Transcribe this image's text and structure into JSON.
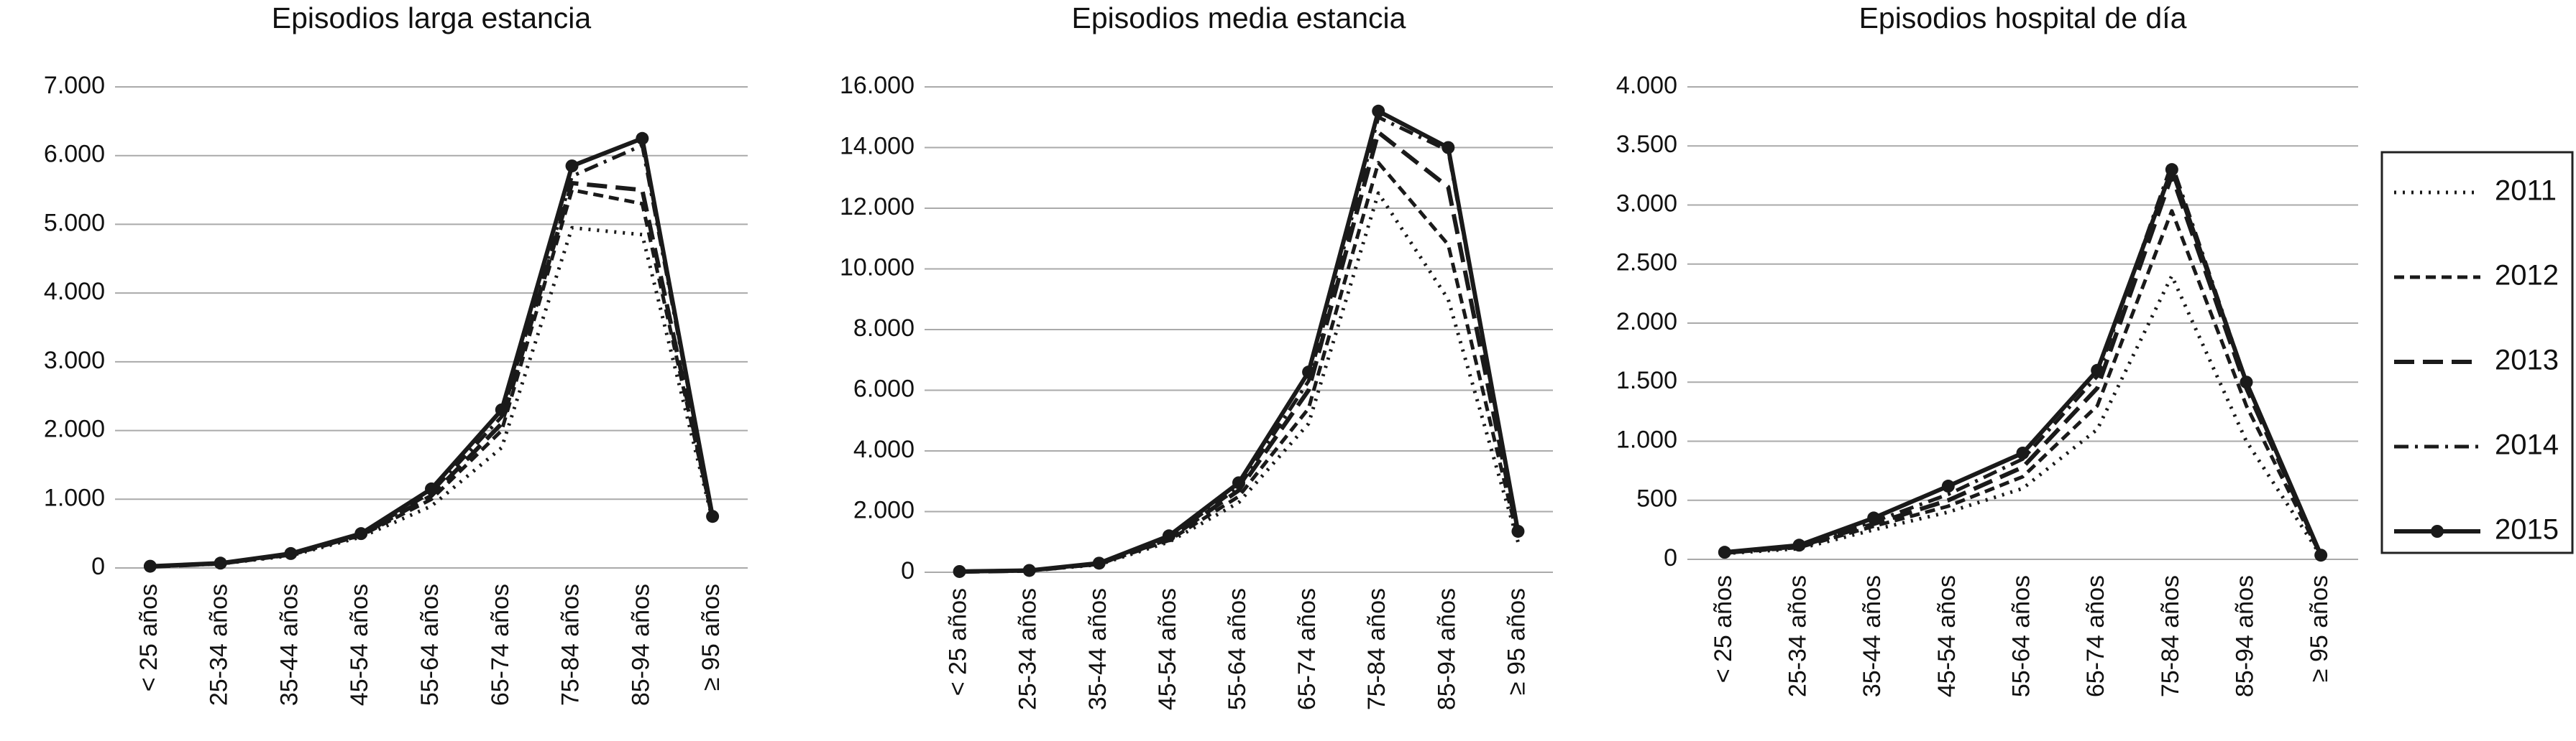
{
  "legend": [
    {
      "name": "2011",
      "dash": "3,9",
      "width": 5
    },
    {
      "name": "2012",
      "dash": "14,8",
      "width": 5
    },
    {
      "name": "2013",
      "dash": "28,12",
      "width": 6
    },
    {
      "name": "2014",
      "dash": "20,9,4,9",
      "width": 5
    },
    {
      "name": "2015",
      "dash": "",
      "width": 6,
      "marker": true
    }
  ],
  "color": "#1a1a1a",
  "chart_data": [
    {
      "type": "line",
      "title": "Episodios larga estancia",
      "categories": [
        "< 25 años",
        "25-34 años",
        "35-44 años",
        "45-54 años",
        "55-64 años",
        "65-74 años",
        "75-84 años",
        "85-94 años",
        "≥ 95 años"
      ],
      "ylim": [
        0,
        7000
      ],
      "yticks": [
        0,
        {
          "value": 1000,
          "label": "1.000"
        },
        {
          "value": 2000,
          "label": "2.000"
        },
        {
          "value": 3000,
          "label": "3.000"
        },
        {
          "value": 4000,
          "label": "4.000"
        },
        {
          "value": 5000,
          "label": "5.000"
        },
        {
          "value": 6000,
          "label": "6.000"
        },
        {
          "value": 7000,
          "label": "7.000"
        }
      ],
      "grid": true,
      "series": [
        {
          "values": [
            20,
            60,
            180,
            450,
            900,
            1750,
            4950,
            4850,
            700
          ]
        },
        {
          "values": [
            20,
            60,
            190,
            470,
            1000,
            2000,
            5500,
            5300,
            720
          ]
        },
        {
          "values": [
            20,
            65,
            200,
            480,
            1050,
            2100,
            5600,
            5500,
            730
          ]
        },
        {
          "values": [
            20,
            65,
            200,
            490,
            1100,
            2200,
            5700,
            6150,
            740
          ]
        },
        {
          "values": [
            25,
            70,
            210,
            500,
            1150,
            2300,
            5850,
            6250,
            750
          ]
        }
      ]
    },
    {
      "type": "line",
      "title": "Episodios media estancia",
      "categories": [
        "< 25 años",
        "25-34 años",
        "35-44 años",
        "45-54 años",
        "55-64 años",
        "65-74 años",
        "75-84 años",
        "85-94 años",
        "≥ 95 años"
      ],
      "ylim": [
        0,
        16000
      ],
      "yticks": [
        0,
        {
          "value": 2000,
          "label": "2.000"
        },
        {
          "value": 4000,
          "label": "4.000"
        },
        {
          "value": 6000,
          "label": "6.000"
        },
        {
          "value": 8000,
          "label": "8.000"
        },
        {
          "value": 10000,
          "label": "10.000"
        },
        {
          "value": 12000,
          "label": "12.000"
        },
        {
          "value": 14000,
          "label": "14.000"
        },
        {
          "value": 16000,
          "label": "16.000"
        }
      ],
      "grid": true,
      "series": [
        {
          "values": [
            20,
            50,
            250,
            1000,
            2300,
            4900,
            12500,
            9000,
            1000
          ]
        },
        {
          "values": [
            20,
            55,
            270,
            1050,
            2500,
            5400,
            13500,
            10800,
            1100
          ]
        },
        {
          "values": [
            20,
            55,
            280,
            1100,
            2700,
            6000,
            14500,
            12700,
            1200
          ]
        },
        {
          "values": [
            20,
            60,
            290,
            1150,
            2800,
            6300,
            15000,
            13900,
            1300
          ]
        },
        {
          "values": [
            25,
            60,
            300,
            1200,
            2950,
            6600,
            15200,
            14000,
            1350
          ]
        }
      ]
    },
    {
      "type": "line",
      "title": "Episodios hospital de día",
      "categories": [
        "< 25 años",
        "25-34 años",
        "35-44 años",
        "45-54 años",
        "55-64 años",
        "65-74 años",
        "75-84 años",
        "85-94 años",
        "≥ 95 años"
      ],
      "ylim": [
        0,
        4000
      ],
      "yticks": [
        0,
        500,
        {
          "value": 1000,
          "label": "1.000"
        },
        {
          "value": 1500,
          "label": "1.500"
        },
        {
          "value": 2000,
          "label": "2.000"
        },
        {
          "value": 2500,
          "label": "2.500"
        },
        {
          "value": 3000,
          "label": "3.000"
        },
        {
          "value": 3500,
          "label": "3.500"
        },
        {
          "value": 4000,
          "label": "4.000"
        }
      ],
      "grid": true,
      "series": [
        {
          "values": [
            50,
            90,
            250,
            400,
            600,
            1100,
            2400,
            1000,
            30
          ]
        },
        {
          "values": [
            55,
            100,
            280,
            450,
            700,
            1300,
            2950,
            1300,
            30
          ]
        },
        {
          "values": [
            55,
            110,
            300,
            500,
            780,
            1450,
            3250,
            1450,
            35
          ]
        },
        {
          "values": [
            55,
            115,
            320,
            550,
            850,
            1550,
            3350,
            1500,
            35
          ]
        },
        {
          "values": [
            60,
            120,
            350,
            620,
            900,
            1600,
            3300,
            1500,
            35
          ]
        }
      ]
    }
  ]
}
